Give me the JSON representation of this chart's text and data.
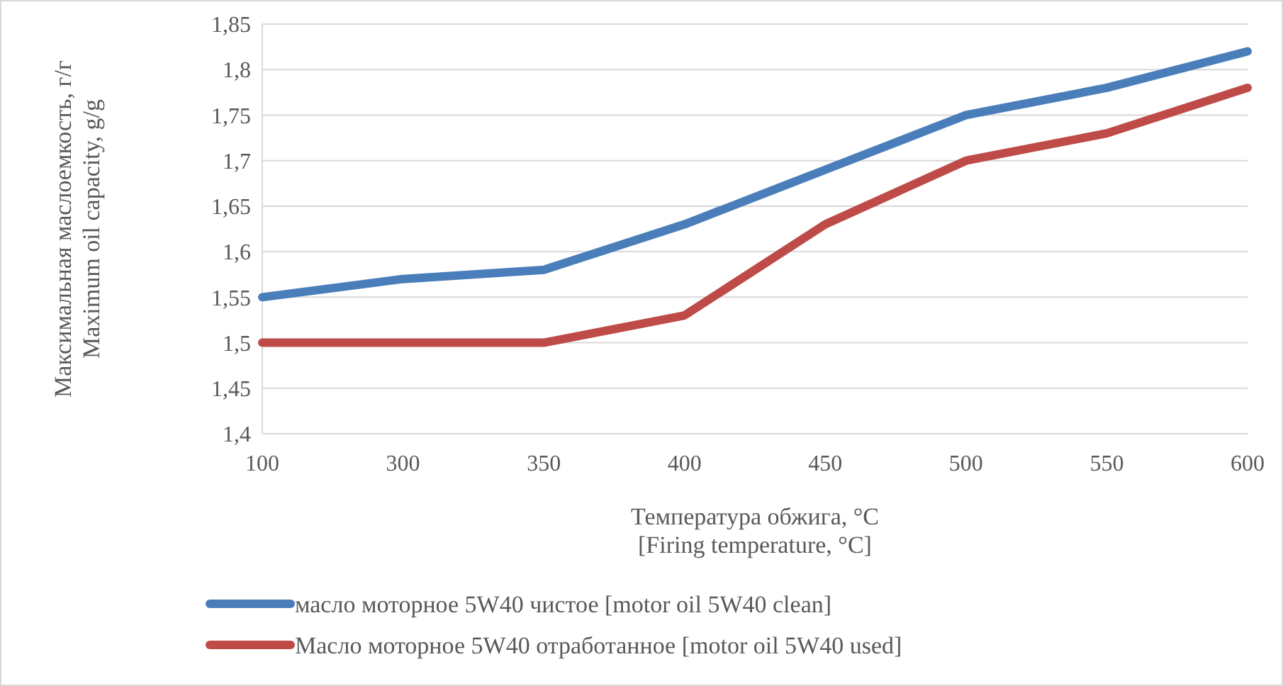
{
  "chart_data": {
    "type": "line",
    "xlabel": "Температура обжига, °C\n[Firing temperature, °C]",
    "ylabel": "Максимальная маслоемкость, г/г\nMaximum oil capacity, g/g",
    "categories": [
      "100",
      "300",
      "350",
      "400",
      "450",
      "500",
      "550",
      "600"
    ],
    "series": [
      {
        "name": "масло моторное 5W40 чистое [motor oil 5W40 clean]",
        "color": "#4a7ebb",
        "values": [
          1.55,
          1.57,
          1.58,
          1.63,
          1.69,
          1.75,
          1.78,
          1.82
        ]
      },
      {
        "name": "Масло моторное 5W40 отработанное [motor oil 5W40  used]",
        "color": "#be4b48",
        "values": [
          1.5,
          1.5,
          1.5,
          1.53,
          1.63,
          1.7,
          1.73,
          1.78
        ]
      }
    ],
    "ylim": [
      1.4,
      1.85
    ],
    "yticks": [
      {
        "value": 1.4,
        "label": "1,4"
      },
      {
        "value": 1.45,
        "label": "1,45"
      },
      {
        "value": 1.5,
        "label": "1,5"
      },
      {
        "value": 1.55,
        "label": "1,55"
      },
      {
        "value": 1.6,
        "label": "1,6"
      },
      {
        "value": 1.65,
        "label": "1,65"
      },
      {
        "value": 1.7,
        "label": "1,7"
      },
      {
        "value": 1.75,
        "label": "1,75"
      },
      {
        "value": 1.8,
        "label": "1,8"
      },
      {
        "value": 1.85,
        "label": "1,85"
      }
    ],
    "grid": "y",
    "legend": "bottom",
    "marker": "none",
    "line_style": "solid"
  }
}
